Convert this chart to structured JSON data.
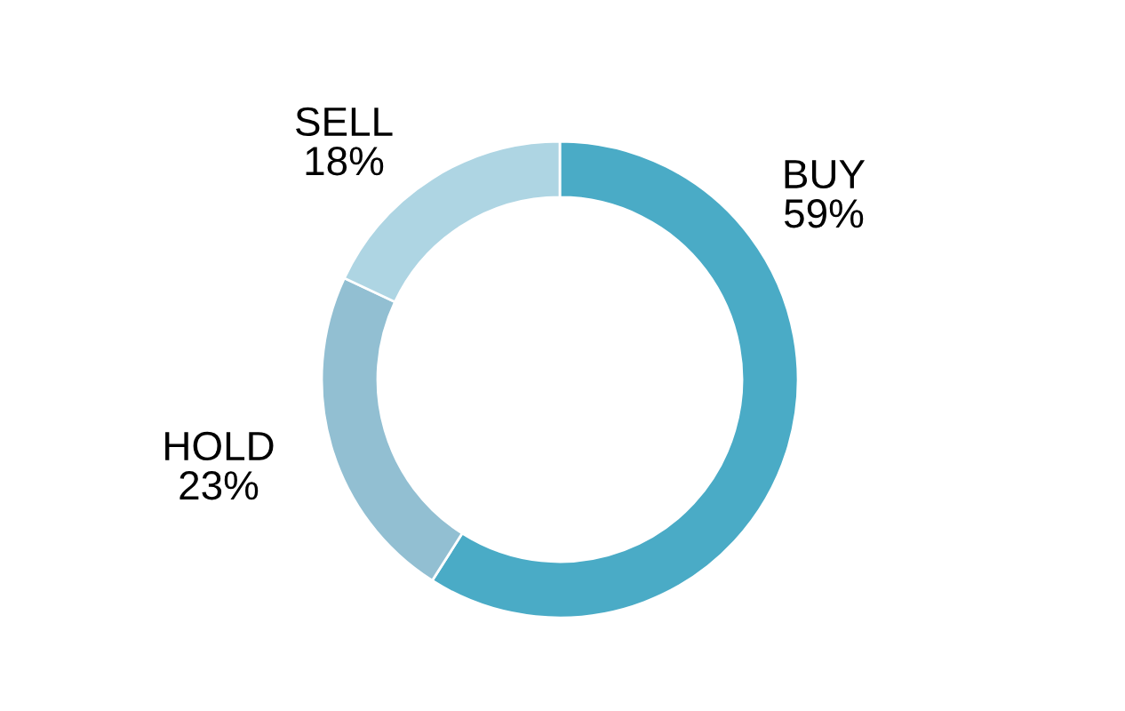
{
  "chart_data": {
    "type": "donut",
    "categories": [
      "BUY",
      "HOLD",
      "SELL"
    ],
    "values": [
      59,
      23,
      18
    ],
    "colors": [
      "#4aabc6",
      "#92bfd2",
      "#aed5e3"
    ],
    "value_labels": [
      "59%",
      "23%",
      "18%"
    ]
  }
}
